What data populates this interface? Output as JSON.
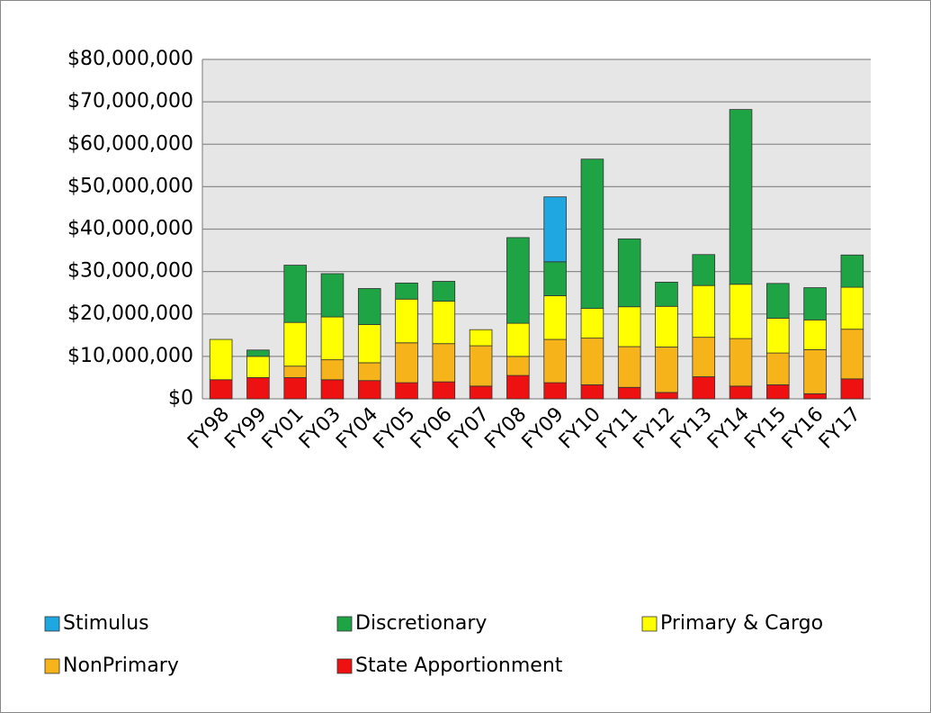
{
  "chart_data": {
    "type": "stacked_bar",
    "categories": [
      "FY98",
      "FY99",
      "FY01",
      "FY03",
      "FY04",
      "FY05",
      "FY06",
      "FY07",
      "FY08",
      "FY09",
      "FY10",
      "FY11",
      "FY12",
      "FY13",
      "FY14",
      "FY15",
      "FY16",
      "FY17"
    ],
    "series": [
      {
        "name": "Stimulus",
        "color": "#1ea7e1",
        "values": [
          0,
          0,
          0,
          0,
          0,
          0,
          0,
          0,
          0,
          15300000,
          0,
          0,
          0,
          0,
          0,
          0,
          0,
          0
        ]
      },
      {
        "name": "Discretionary",
        "color": "#1ea345",
        "values": [
          0,
          1500000,
          13500000,
          10200000,
          8500000,
          3800000,
          4700000,
          0,
          20200000,
          8000000,
          35200000,
          16000000,
          5700000,
          7300000,
          41200000,
          8200000,
          7600000,
          7600000
        ]
      },
      {
        "name": "Primary & Cargo",
        "color": "#ffff00",
        "values": [
          9500000,
          5000000,
          10300000,
          10100000,
          9000000,
          10300000,
          10000000,
          3800000,
          7800000,
          10300000,
          7000000,
          9400000,
          9600000,
          12200000,
          12800000,
          8200000,
          7000000,
          9900000
        ]
      },
      {
        "name": "NonPrimary",
        "color": "#f7b31a",
        "values": [
          0,
          0,
          2700000,
          4700000,
          4200000,
          9400000,
          9000000,
          9500000,
          4500000,
          10200000,
          11000000,
          9600000,
          10700000,
          9300000,
          11200000,
          7500000,
          10400000,
          11700000
        ]
      },
      {
        "name": "State Apportionment",
        "color": "#ee1111",
        "values": [
          4500000,
          5000000,
          5000000,
          4500000,
          4300000,
          3800000,
          4000000,
          3000000,
          5500000,
          3800000,
          3300000,
          2700000,
          1500000,
          5200000,
          3000000,
          3300000,
          1200000,
          4700000
        ]
      }
    ],
    "ylim": [
      0,
      80000000
    ],
    "yticks": [
      {
        "value": 0,
        "label": "$0"
      },
      {
        "value": 10000000,
        "label": "$10,000,000"
      },
      {
        "value": 20000000,
        "label": "$20,000,000"
      },
      {
        "value": 30000000,
        "label": "$30,000,000"
      },
      {
        "value": 40000000,
        "label": "$40,000,000"
      },
      {
        "value": 50000000,
        "label": "$50,000,000"
      },
      {
        "value": 60000000,
        "label": "$60,000,000"
      },
      {
        "value": 70000000,
        "label": "$70,000,000"
      },
      {
        "value": 80000000,
        "label": "$80,000,000"
      }
    ],
    "grid": true,
    "legend": "bottom"
  }
}
